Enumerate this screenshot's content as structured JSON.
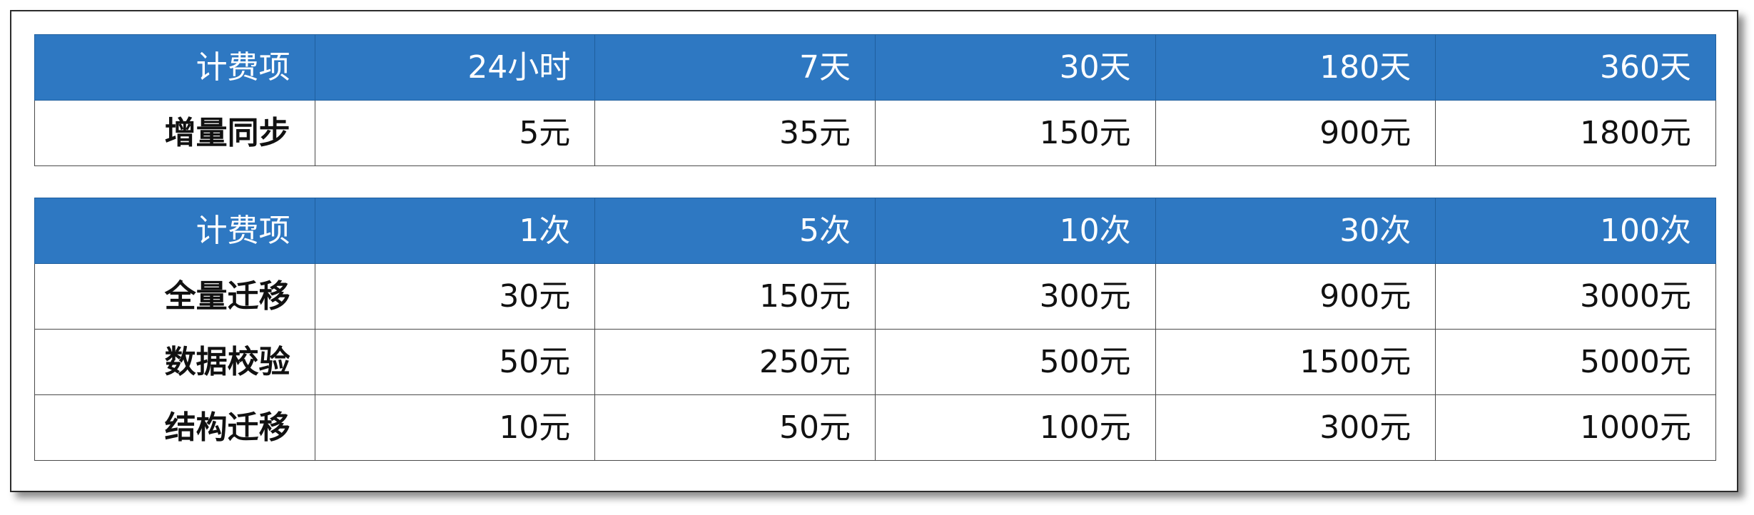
{
  "table1": {
    "header": [
      "计费项",
      "24小时",
      "7天",
      "30天",
      "180天",
      "360天"
    ],
    "rows": [
      [
        "增量同步",
        "5元",
        "35元",
        "150元",
        "900元",
        "1800元"
      ]
    ]
  },
  "table2": {
    "header": [
      "计费项",
      "1次",
      "5次",
      "10次",
      "30次",
      "100次"
    ],
    "rows": [
      [
        "全量迁移",
        "30元",
        "150元",
        "300元",
        "900元",
        "3000元"
      ],
      [
        "数据校验",
        "50元",
        "250元",
        "500元",
        "1500元",
        "5000元"
      ],
      [
        "结构迁移",
        "10元",
        "50元",
        "100元",
        "300元",
        "1000元"
      ]
    ]
  },
  "colors": {
    "header_background": "#2e78c2",
    "header_text": "#ffffff",
    "frame_border": "#2b2b2b",
    "cell_border": "#4a4a4a"
  }
}
